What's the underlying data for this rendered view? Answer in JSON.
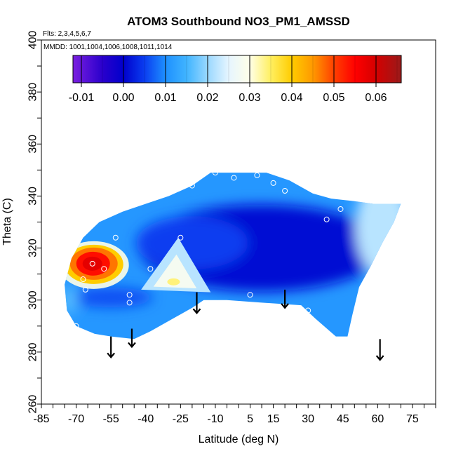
{
  "chart_data": {
    "type": "heatmap",
    "title": "ATOM3 Southbound NO3_PM1_AMSSD",
    "flights_label": "Flts: 2,3,4,5,6,7",
    "mmdd_label": "MMDD: 1001,1004,1006,1008,1011,1014",
    "xlabel": "Latitude (deg N)",
    "ylabel": "Theta (C)",
    "xlim": [
      -85,
      85
    ],
    "ylim": [
      260,
      400
    ],
    "x_ticks": [
      "-85",
      "-70",
      "-55",
      "-40",
      "-25",
      "-10",
      "5",
      "15",
      "30",
      "45",
      "60",
      "75"
    ],
    "x_tick_values": [
      -85,
      -70,
      -55,
      -40,
      -25,
      -10,
      5,
      15,
      30,
      45,
      60,
      75
    ],
    "y_ticks": [
      "260",
      "280",
      "300",
      "320",
      "340",
      "360",
      "380",
      "400"
    ],
    "y_tick_values": [
      260,
      280,
      300,
      320,
      340,
      360,
      380,
      400
    ],
    "colorbar": {
      "range": [
        -0.012,
        0.066
      ],
      "tick_labels": [
        "-0.01",
        "0.00",
        "0.01",
        "0.02",
        "0.03",
        "0.04",
        "0.05",
        "0.06"
      ],
      "tick_values": [
        -0.01,
        0.0,
        0.01,
        0.02,
        0.03,
        0.04,
        0.05,
        0.06
      ],
      "stops": [
        {
          "value": -0.012,
          "color": "#7b1fe0"
        },
        {
          "value": -0.005,
          "color": "#2a00cc"
        },
        {
          "value": 0.0,
          "color": "#0000cc"
        },
        {
          "value": 0.005,
          "color": "#0a3df0"
        },
        {
          "value": 0.01,
          "color": "#1e90ff"
        },
        {
          "value": 0.015,
          "color": "#40b4ff"
        },
        {
          "value": 0.02,
          "color": "#9ad8ff"
        },
        {
          "value": 0.025,
          "color": "#e6f5ff"
        },
        {
          "value": 0.03,
          "color": "#ffffe8"
        },
        {
          "value": 0.035,
          "color": "#ffef60"
        },
        {
          "value": 0.04,
          "color": "#ffcc00"
        },
        {
          "value": 0.045,
          "color": "#ff9900"
        },
        {
          "value": 0.05,
          "color": "#ff4000"
        },
        {
          "value": 0.055,
          "color": "#ff0000"
        },
        {
          "value": 0.06,
          "color": "#d40000"
        },
        {
          "value": 0.066,
          "color": "#9a1a1a"
        }
      ]
    },
    "field_outline": [
      [
        -70,
        290
      ],
      [
        -74,
        296
      ],
      [
        -75,
        306
      ],
      [
        -72,
        316
      ],
      [
        -67,
        324
      ],
      [
        -60,
        330
      ],
      [
        -50,
        334
      ],
      [
        -40,
        337
      ],
      [
        -30,
        340
      ],
      [
        -20,
        344
      ],
      [
        -12,
        349
      ],
      [
        0,
        349
      ],
      [
        12,
        349
      ],
      [
        22,
        346
      ],
      [
        32,
        341
      ],
      [
        40,
        339
      ],
      [
        50,
        338
      ],
      [
        58,
        337
      ],
      [
        70,
        337
      ],
      [
        67,
        330
      ],
      [
        62,
        322
      ],
      [
        57,
        313
      ],
      [
        52,
        305
      ],
      [
        49,
        294
      ],
      [
        47,
        286
      ],
      [
        42,
        286
      ],
      [
        33,
        293
      ],
      [
        27,
        298
      ],
      [
        10,
        299
      ],
      [
        -5,
        300
      ],
      [
        -15,
        300
      ],
      [
        -20,
        297
      ],
      [
        -30,
        292
      ],
      [
        -38,
        288
      ],
      [
        -45,
        285
      ],
      [
        -55,
        286
      ],
      [
        -62,
        287
      ],
      [
        -70,
        290
      ]
    ],
    "features": [
      {
        "label": "hotspot_southern_high_lat",
        "x": -63,
        "y": 314,
        "value": 0.058
      },
      {
        "label": "hotspot_southern_mid_lat",
        "x": -28,
        "y": 307,
        "value": 0.034
      },
      {
        "label": "edge_north_high_lat",
        "x": 62,
        "y": 328,
        "value": 0.022
      },
      {
        "label": "interior_background",
        "x": 10,
        "y": 320,
        "value": 0.001
      }
    ],
    "sample_points": [
      [
        -67,
        308
      ],
      [
        -66,
        304
      ],
      [
        -63,
        314
      ],
      [
        -58,
        312
      ],
      [
        -53,
        324
      ],
      [
        -47,
        302
      ],
      [
        -47,
        299
      ],
      [
        -38,
        312
      ],
      [
        -25,
        324
      ],
      [
        -20,
        344
      ],
      [
        -10,
        349
      ],
      [
        -2,
        347
      ],
      [
        8,
        348
      ],
      [
        15,
        345
      ],
      [
        20,
        342
      ],
      [
        -70,
        290
      ],
      [
        5,
        302
      ],
      [
        30,
        296
      ],
      [
        38,
        331
      ],
      [
        44,
        335
      ]
    ],
    "arrows": [
      {
        "x": -55,
        "from_y": 286,
        "to_y": 278
      },
      {
        "x": -46,
        "from_y": 289,
        "to_y": 282
      },
      {
        "x": -18,
        "from_y": 303,
        "to_y": 295
      },
      {
        "x": 20,
        "from_y": 304,
        "to_y": 297
      },
      {
        "x": 61,
        "from_y": 285,
        "to_y": 277
      }
    ]
  }
}
